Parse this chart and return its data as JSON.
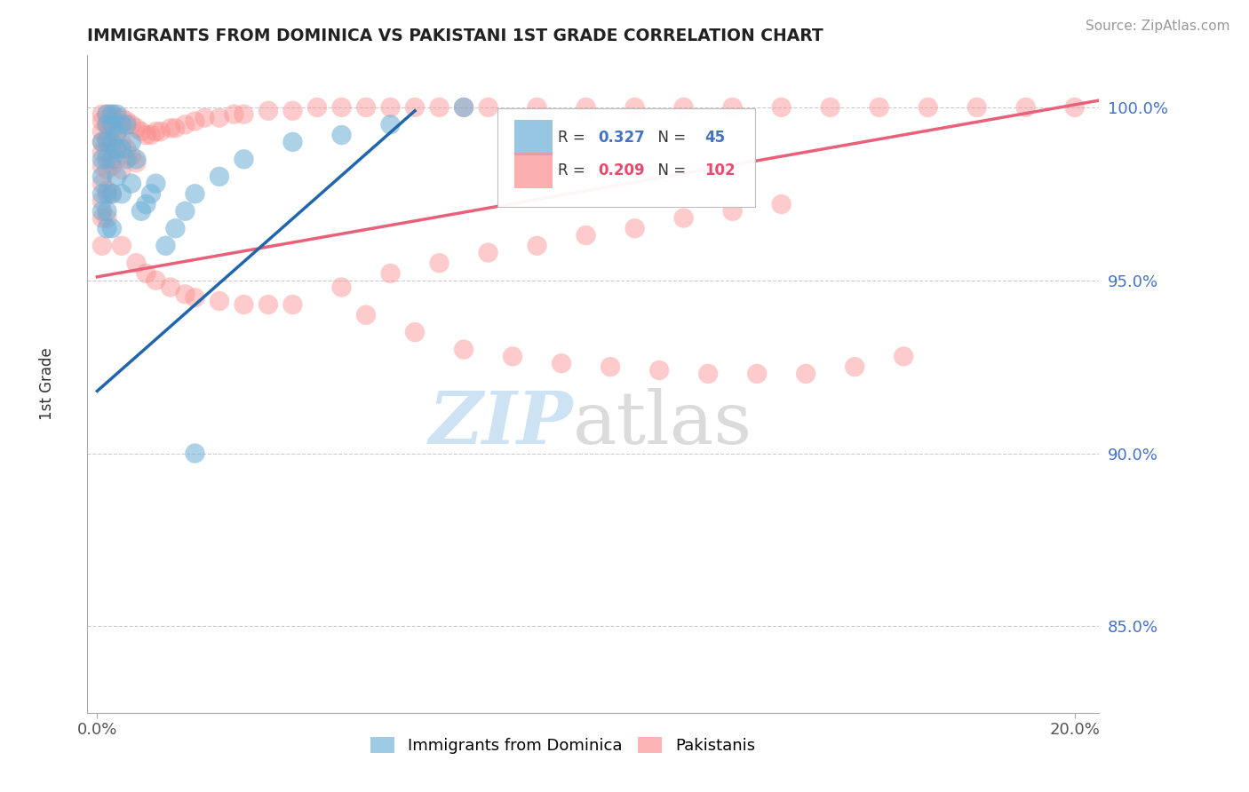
{
  "title": "IMMIGRANTS FROM DOMINICA VS PAKISTANI 1ST GRADE CORRELATION CHART",
  "source": "Source: ZipAtlas.com",
  "ylabel": "1st Grade",
  "xlim": [
    -0.002,
    0.205
  ],
  "ylim": [
    0.825,
    1.015
  ],
  "yticks": [
    0.85,
    0.9,
    0.95,
    1.0
  ],
  "ytick_labels": [
    "85.0%",
    "90.0%",
    "95.0%",
    "100.0%"
  ],
  "xtick_vals": [
    0.0,
    0.2
  ],
  "xtick_labels": [
    "0.0%",
    "20.0%"
  ],
  "legend_blue_R": "0.327",
  "legend_blue_N": "45",
  "legend_pink_R": "0.209",
  "legend_pink_N": "102",
  "blue_color": "#6baed6",
  "pink_color": "#fc8d8d",
  "blue_line_color": "#2166ac",
  "pink_line_color": "#e8607a",
  "blue_line": [
    [
      0.0,
      0.065
    ],
    [
      0.918,
      0.999
    ]
  ],
  "pink_line": [
    [
      0.0,
      0.205
    ],
    [
      0.951,
      1.002
    ]
  ],
  "blue_x": [
    0.001,
    0.001,
    0.001,
    0.001,
    0.001,
    0.002,
    0.002,
    0.002,
    0.002,
    0.002,
    0.002,
    0.002,
    0.003,
    0.003,
    0.003,
    0.003,
    0.003,
    0.003,
    0.004,
    0.004,
    0.004,
    0.004,
    0.005,
    0.005,
    0.005,
    0.006,
    0.006,
    0.007,
    0.007,
    0.008,
    0.009,
    0.01,
    0.011,
    0.012,
    0.014,
    0.016,
    0.018,
    0.02,
    0.025,
    0.03,
    0.04,
    0.05,
    0.06,
    0.075,
    0.02
  ],
  "blue_y": [
    0.99,
    0.985,
    0.98,
    0.975,
    0.97,
    0.998,
    0.995,
    0.99,
    0.985,
    0.975,
    0.97,
    0.965,
    0.998,
    0.995,
    0.99,
    0.985,
    0.975,
    0.965,
    0.998,
    0.993,
    0.988,
    0.98,
    0.995,
    0.988,
    0.975,
    0.995,
    0.985,
    0.99,
    0.978,
    0.985,
    0.97,
    0.972,
    0.975,
    0.978,
    0.96,
    0.965,
    0.97,
    0.975,
    0.98,
    0.985,
    0.99,
    0.992,
    0.995,
    1.0,
    0.9
  ],
  "pink_x": [
    0.001,
    0.001,
    0.001,
    0.001,
    0.001,
    0.001,
    0.001,
    0.001,
    0.001,
    0.001,
    0.002,
    0.002,
    0.002,
    0.002,
    0.002,
    0.002,
    0.002,
    0.003,
    0.003,
    0.003,
    0.003,
    0.003,
    0.004,
    0.004,
    0.004,
    0.005,
    0.005,
    0.005,
    0.006,
    0.006,
    0.007,
    0.007,
    0.008,
    0.008,
    0.009,
    0.01,
    0.011,
    0.012,
    0.013,
    0.015,
    0.016,
    0.018,
    0.02,
    0.022,
    0.025,
    0.028,
    0.03,
    0.035,
    0.04,
    0.045,
    0.05,
    0.055,
    0.06,
    0.065,
    0.07,
    0.075,
    0.08,
    0.09,
    0.1,
    0.11,
    0.12,
    0.13,
    0.14,
    0.15,
    0.16,
    0.17,
    0.18,
    0.19,
    0.2,
    0.005,
    0.008,
    0.01,
    0.012,
    0.015,
    0.018,
    0.02,
    0.025,
    0.03,
    0.035,
    0.04,
    0.05,
    0.06,
    0.07,
    0.08,
    0.09,
    0.1,
    0.11,
    0.12,
    0.13,
    0.14,
    0.055,
    0.065,
    0.075,
    0.085,
    0.095,
    0.105,
    0.115,
    0.125,
    0.135,
    0.145,
    0.155,
    0.165
  ],
  "pink_y": [
    0.998,
    0.996,
    0.993,
    0.99,
    0.987,
    0.983,
    0.978,
    0.973,
    0.968,
    0.96,
    0.998,
    0.995,
    0.991,
    0.987,
    0.982,
    0.976,
    0.968,
    0.998,
    0.994,
    0.989,
    0.983,
    0.975,
    0.997,
    0.992,
    0.985,
    0.997,
    0.99,
    0.982,
    0.996,
    0.988,
    0.995,
    0.986,
    0.994,
    0.984,
    0.993,
    0.992,
    0.992,
    0.993,
    0.993,
    0.994,
    0.994,
    0.995,
    0.996,
    0.997,
    0.997,
    0.998,
    0.998,
    0.999,
    0.999,
    1.0,
    1.0,
    1.0,
    1.0,
    1.0,
    1.0,
    1.0,
    1.0,
    1.0,
    1.0,
    1.0,
    1.0,
    1.0,
    1.0,
    1.0,
    1.0,
    1.0,
    1.0,
    1.0,
    1.0,
    0.96,
    0.955,
    0.952,
    0.95,
    0.948,
    0.946,
    0.945,
    0.944,
    0.943,
    0.943,
    0.943,
    0.948,
    0.952,
    0.955,
    0.958,
    0.96,
    0.963,
    0.965,
    0.968,
    0.97,
    0.972,
    0.94,
    0.935,
    0.93,
    0.928,
    0.926,
    0.925,
    0.924,
    0.923,
    0.923,
    0.923,
    0.925,
    0.928
  ]
}
